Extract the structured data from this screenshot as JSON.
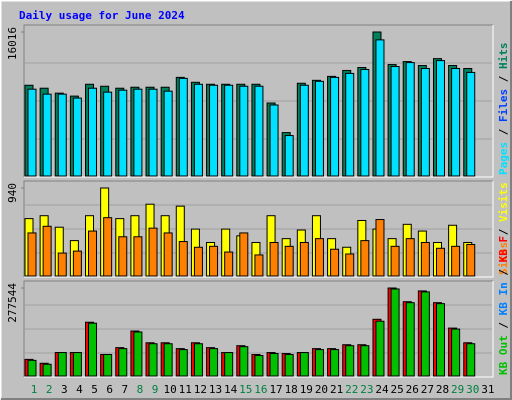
{
  "chart_data": [
    {
      "type": "bar",
      "title": "Daily usage for June 2024",
      "categories": [
        "1",
        "2",
        "3",
        "4",
        "5",
        "6",
        "7",
        "8",
        "9",
        "10",
        "11",
        "12",
        "13",
        "14",
        "15",
        "16",
        "17",
        "18",
        "19",
        "20",
        "21",
        "22",
        "23",
        "24",
        "25",
        "26",
        "27",
        "28",
        "29",
        "30",
        "31"
      ],
      "ylim": [
        0,
        16016
      ],
      "yticks": [
        16016
      ],
      "legend_separator": " / ",
      "series": [
        {
          "name": "Hits",
          "color": "#00805c",
          "values": [
            10092,
            9763,
            9215,
            8886,
            10202,
            9983,
            9763,
            9873,
            9873,
            9873,
            10970,
            10421,
            10202,
            10202,
            10202,
            10202,
            8118,
            4827,
            10312,
            10641,
            11080,
            11738,
            12067,
            16016,
            12396,
            12725,
            12286,
            13054,
            12286,
            11957,
            null
          ]
        },
        {
          "name": "Files",
          "color": "#0040ff",
          "values": [
            null,
            null,
            null,
            null,
            null,
            null,
            null,
            null,
            null,
            null,
            null,
            null,
            null,
            null,
            null,
            null,
            null,
            null,
            null,
            null,
            null,
            null,
            null,
            null,
            null,
            null,
            null,
            null,
            null,
            null,
            null
          ]
        },
        {
          "name": "Pages",
          "color": "#00e0ff",
          "values": [
            9654,
            9105,
            9105,
            8666,
            9763,
            9325,
            9544,
            9654,
            9654,
            9434,
            10860,
            10202,
            10092,
            10092,
            9983,
            9983,
            7898,
            4498,
            10092,
            10531,
            10970,
            11409,
            11848,
            15139,
            12177,
            12616,
            11957,
            12835,
            11957,
            11519,
            null
          ]
        }
      ]
    },
    {
      "type": "bar",
      "categories": [
        "1",
        "2",
        "3",
        "4",
        "5",
        "6",
        "7",
        "8",
        "9",
        "10",
        "11",
        "12",
        "13",
        "14",
        "15",
        "16",
        "17",
        "18",
        "19",
        "20",
        "21",
        "22",
        "23",
        "24",
        "25",
        "26",
        "27",
        "28",
        "29",
        "30",
        "31"
      ],
      "ylim": [
        0,
        940
      ],
      "yticks": [
        940
      ],
      "legend_separator": " / ",
      "series": [
        {
          "name": "Visits",
          "color": "#ffff00",
          "values": [
            613,
            644,
            521,
            378,
            644,
            940,
            613,
            644,
            767,
            644,
            746,
            501,
            358,
            501,
            429,
            358,
            644,
            399,
            491,
            644,
            399,
            307,
            593,
            501,
            399,
            552,
            480,
            358,
            542,
            358,
            null
          ]
        },
        {
          "name": "Sites",
          "color": "#ff8000",
          "values": [
            460,
            531,
            245,
            266,
            480,
            623,
            419,
            419,
            511,
            460,
            368,
            307,
            317,
            256,
            460,
            225,
            358,
            317,
            358,
            399,
            286,
            235,
            378,
            603,
            317,
            399,
            358,
            296,
            317,
            337,
            null
          ]
        }
      ]
    },
    {
      "type": "bar",
      "categories": [
        "1",
        "2",
        "3",
        "4",
        "5",
        "6",
        "7",
        "8",
        "9",
        "10",
        "11",
        "12",
        "13",
        "14",
        "15",
        "16",
        "17",
        "18",
        "19",
        "20",
        "21",
        "22",
        "23",
        "24",
        "25",
        "26",
        "27",
        "28",
        "29",
        "30",
        "31"
      ],
      "category_colors": [
        "#008040",
        "#008040",
        "#000000",
        "#000000",
        "#000000",
        "#000000",
        "#000000",
        "#008040",
        "#008040",
        "#000000",
        "#000000",
        "#000000",
        "#000000",
        "#000000",
        "#008040",
        "#008040",
        "#000000",
        "#000000",
        "#000000",
        "#000000",
        "#000000",
        "#008040",
        "#008040",
        "#000000",
        "#000000",
        "#000000",
        "#000000",
        "#000000",
        "#008040",
        "#008040",
        "#000000"
      ],
      "ylim": [
        0,
        277544
      ],
      "yticks": [
        277544
      ],
      "legend_separator": " / ",
      "series": [
        {
          "name": "KB F",
          "color": "#ff0000",
          "values": [
            52428,
            40092,
            74016,
            74016,
            169620,
            67848,
            89436,
            141864,
            104856,
            104856,
            86352,
            104856,
            89436,
            74016,
            95604,
            67848,
            74016,
            70932,
            74016,
            86352,
            86352,
            98688,
            98688,
            178872,
            277544,
            234384,
            268308,
            231300,
            151116,
            104856,
            null
          ]
        },
        {
          "name": "KB In",
          "color": "#0080ff",
          "values": [
            null,
            null,
            null,
            null,
            null,
            null,
            null,
            null,
            null,
            null,
            null,
            null,
            null,
            null,
            null,
            null,
            null,
            null,
            null,
            null,
            null,
            null,
            null,
            null,
            null,
            null,
            null,
            null,
            null,
            null,
            null
          ]
        },
        {
          "name": "KB Out",
          "color": "#00c000",
          "values": [
            49344,
            37008,
            74016,
            74016,
            166536,
            67848,
            86352,
            138780,
            101772,
            101772,
            83268,
            101772,
            86352,
            74016,
            92520,
            64764,
            70932,
            67848,
            74016,
            83268,
            83268,
            95604,
            95604,
            172704,
            274476,
            231300,
            265224,
            228216,
            148032,
            101772,
            null
          ]
        }
      ]
    }
  ]
}
